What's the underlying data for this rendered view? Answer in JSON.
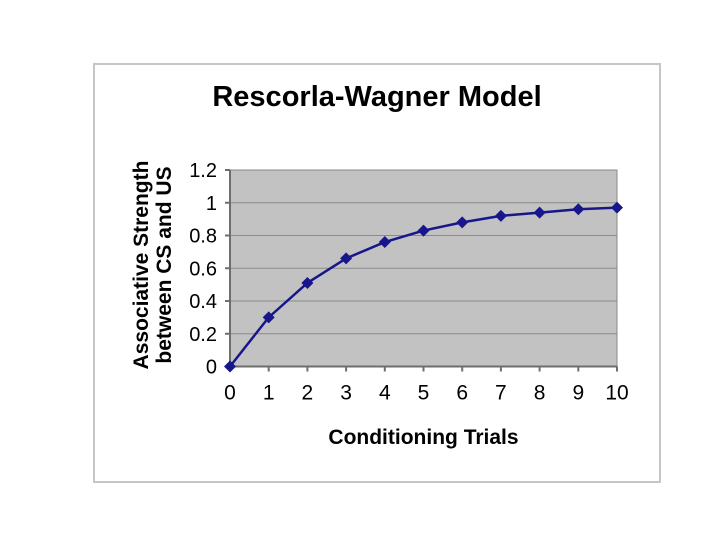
{
  "chart_data": {
    "type": "line",
    "title": "Rescorla-Wagner Model",
    "xlabel": "Conditioning Trials",
    "ylabel": "Associative Strength between CS and US",
    "ylabel_lines": [
      "Associative Strength",
      "between CS and US"
    ],
    "x": [
      0,
      1,
      2,
      3,
      4,
      5,
      6,
      7,
      8,
      9,
      10
    ],
    "x_tick_labels": [
      "0",
      "1",
      "2",
      "3",
      "4",
      "5",
      "6",
      "7",
      "8",
      "9",
      "10"
    ],
    "y_ticks": [
      1.2,
      1,
      0.8,
      0.6,
      0.4,
      0.2,
      0
    ],
    "y_tick_labels": [
      "1.2",
      "1",
      "0.8",
      "0.6",
      "0.4",
      "0.2",
      "0"
    ],
    "ylim": [
      0,
      1.2
    ],
    "grid": true,
    "legend": false,
    "series": [
      {
        "name": "Associative Strength",
        "values": [
          0,
          0.3,
          0.51,
          0.66,
          0.76,
          0.83,
          0.88,
          0.92,
          0.94,
          0.96,
          0.97
        ]
      }
    ],
    "colors": {
      "line": "#17178b",
      "marker": "#17178b",
      "plot_bg": "#c2c2c2",
      "gridline": "#8a8a8a",
      "axis": "#6e6e6e",
      "frame_border": "#c6c6c6",
      "text": "#000000"
    }
  }
}
